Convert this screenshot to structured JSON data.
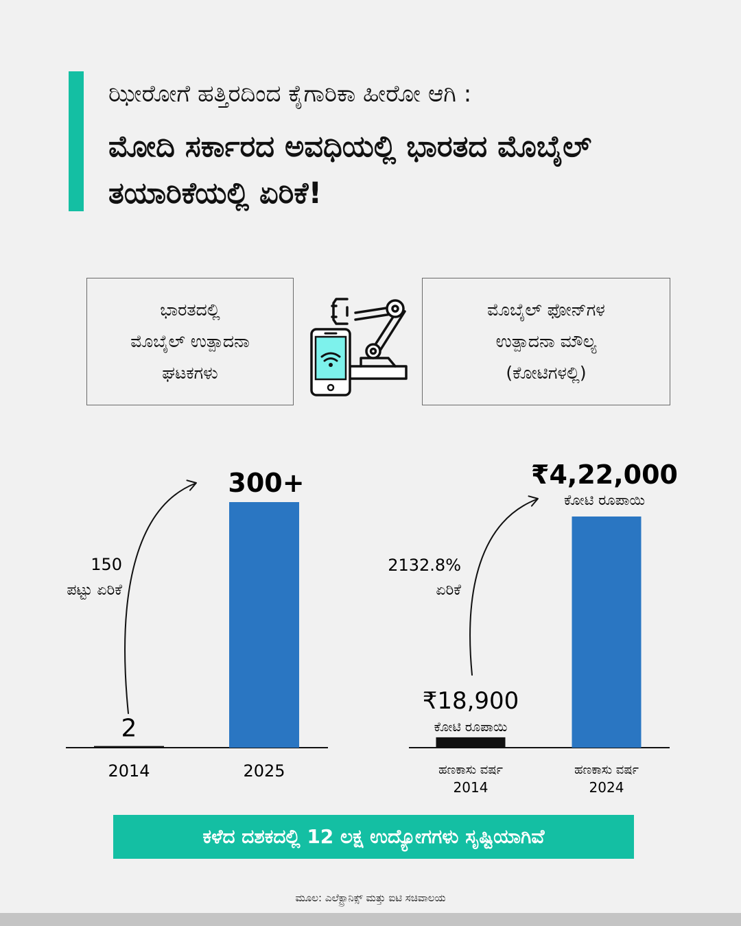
{
  "header": {
    "line1": "ಝೀರೋಗೆ ಹತ್ತಿರದಿಂದ ಕೈಗಾರಿಕಾ ಹೀರೋ ಆಗಿ :",
    "line2": "ಮೋದಿ ಸರ್ಕಾರದ ಅವಧಿಯಲ್ಲಿ ಭಾರತದ ಮೊಬೈಲ್ ತಯಾರಿಕೆಯಲ್ಲಿ ಏರಿಕೆ!"
  },
  "boxes": {
    "left": [
      "ಭಾರತದಲ್ಲಿ",
      "ಮೊಬೈಲ್ ಉತ್ಪಾದನಾ",
      "ಘಟಕಗಳು"
    ],
    "right": [
      "ಮೊಬೈಲ್ ಫೋನ್‌ಗಳ",
      "ಉತ್ಪಾದನಾ ಮೌಲ್ಯ",
      "(ಕೋಟಿಗಳಲ್ಲಿ)"
    ]
  },
  "colors": {
    "accent": "#14bfa3",
    "bar": "#2a76c2",
    "bar_low": "#111111",
    "screen": "#7df2ec"
  },
  "icon": "smartphone-robot-arm-icon",
  "chart_data": [
    {
      "type": "bar",
      "categories": [
        "2014",
        "2025"
      ],
      "values": [
        2,
        300
      ],
      "value_labels": [
        "2",
        "300+"
      ],
      "annotation": [
        "150",
        "ಪಟ್ಟು ಏರಿಕೆ"
      ]
    },
    {
      "type": "bar",
      "categories": [
        "ಹಣಕಾಸು ವರ್ಷ 2014",
        "ಹಣಕಾಸು ವರ್ಷ 2024"
      ],
      "category_lines": [
        [
          "ಹಣಕಾಸು ವರ್ಷ",
          "2014"
        ],
        [
          "ಹಣಕಾಸು ವರ್ಷ",
          "2024"
        ]
      ],
      "values": [
        18900,
        422000
      ],
      "value_labels": [
        "₹18,900",
        "₹4,22,000"
      ],
      "value_units": [
        "ಕೋಟಿ ರೂಪಾಯಿ",
        "ಕೋಟಿ ರೂಪಾಯಿ"
      ],
      "annotation": [
        "2132.8%",
        "ಏರಿಕೆ"
      ]
    }
  ],
  "banner": "ಕಳೆದ ದಶಕದಲ್ಲಿ 12 ಲಕ್ಷ ಉದ್ಯೋಗಗಳು ಸೃಷ್ಟಿಯಾಗಿವೆ",
  "source": "ಮೂಲ: ಎಲೆಕ್ಟ್ರಾನಿಕ್ಸ್ ಮತ್ತು ಐಟಿ ಸಚಿವಾಲಯ"
}
